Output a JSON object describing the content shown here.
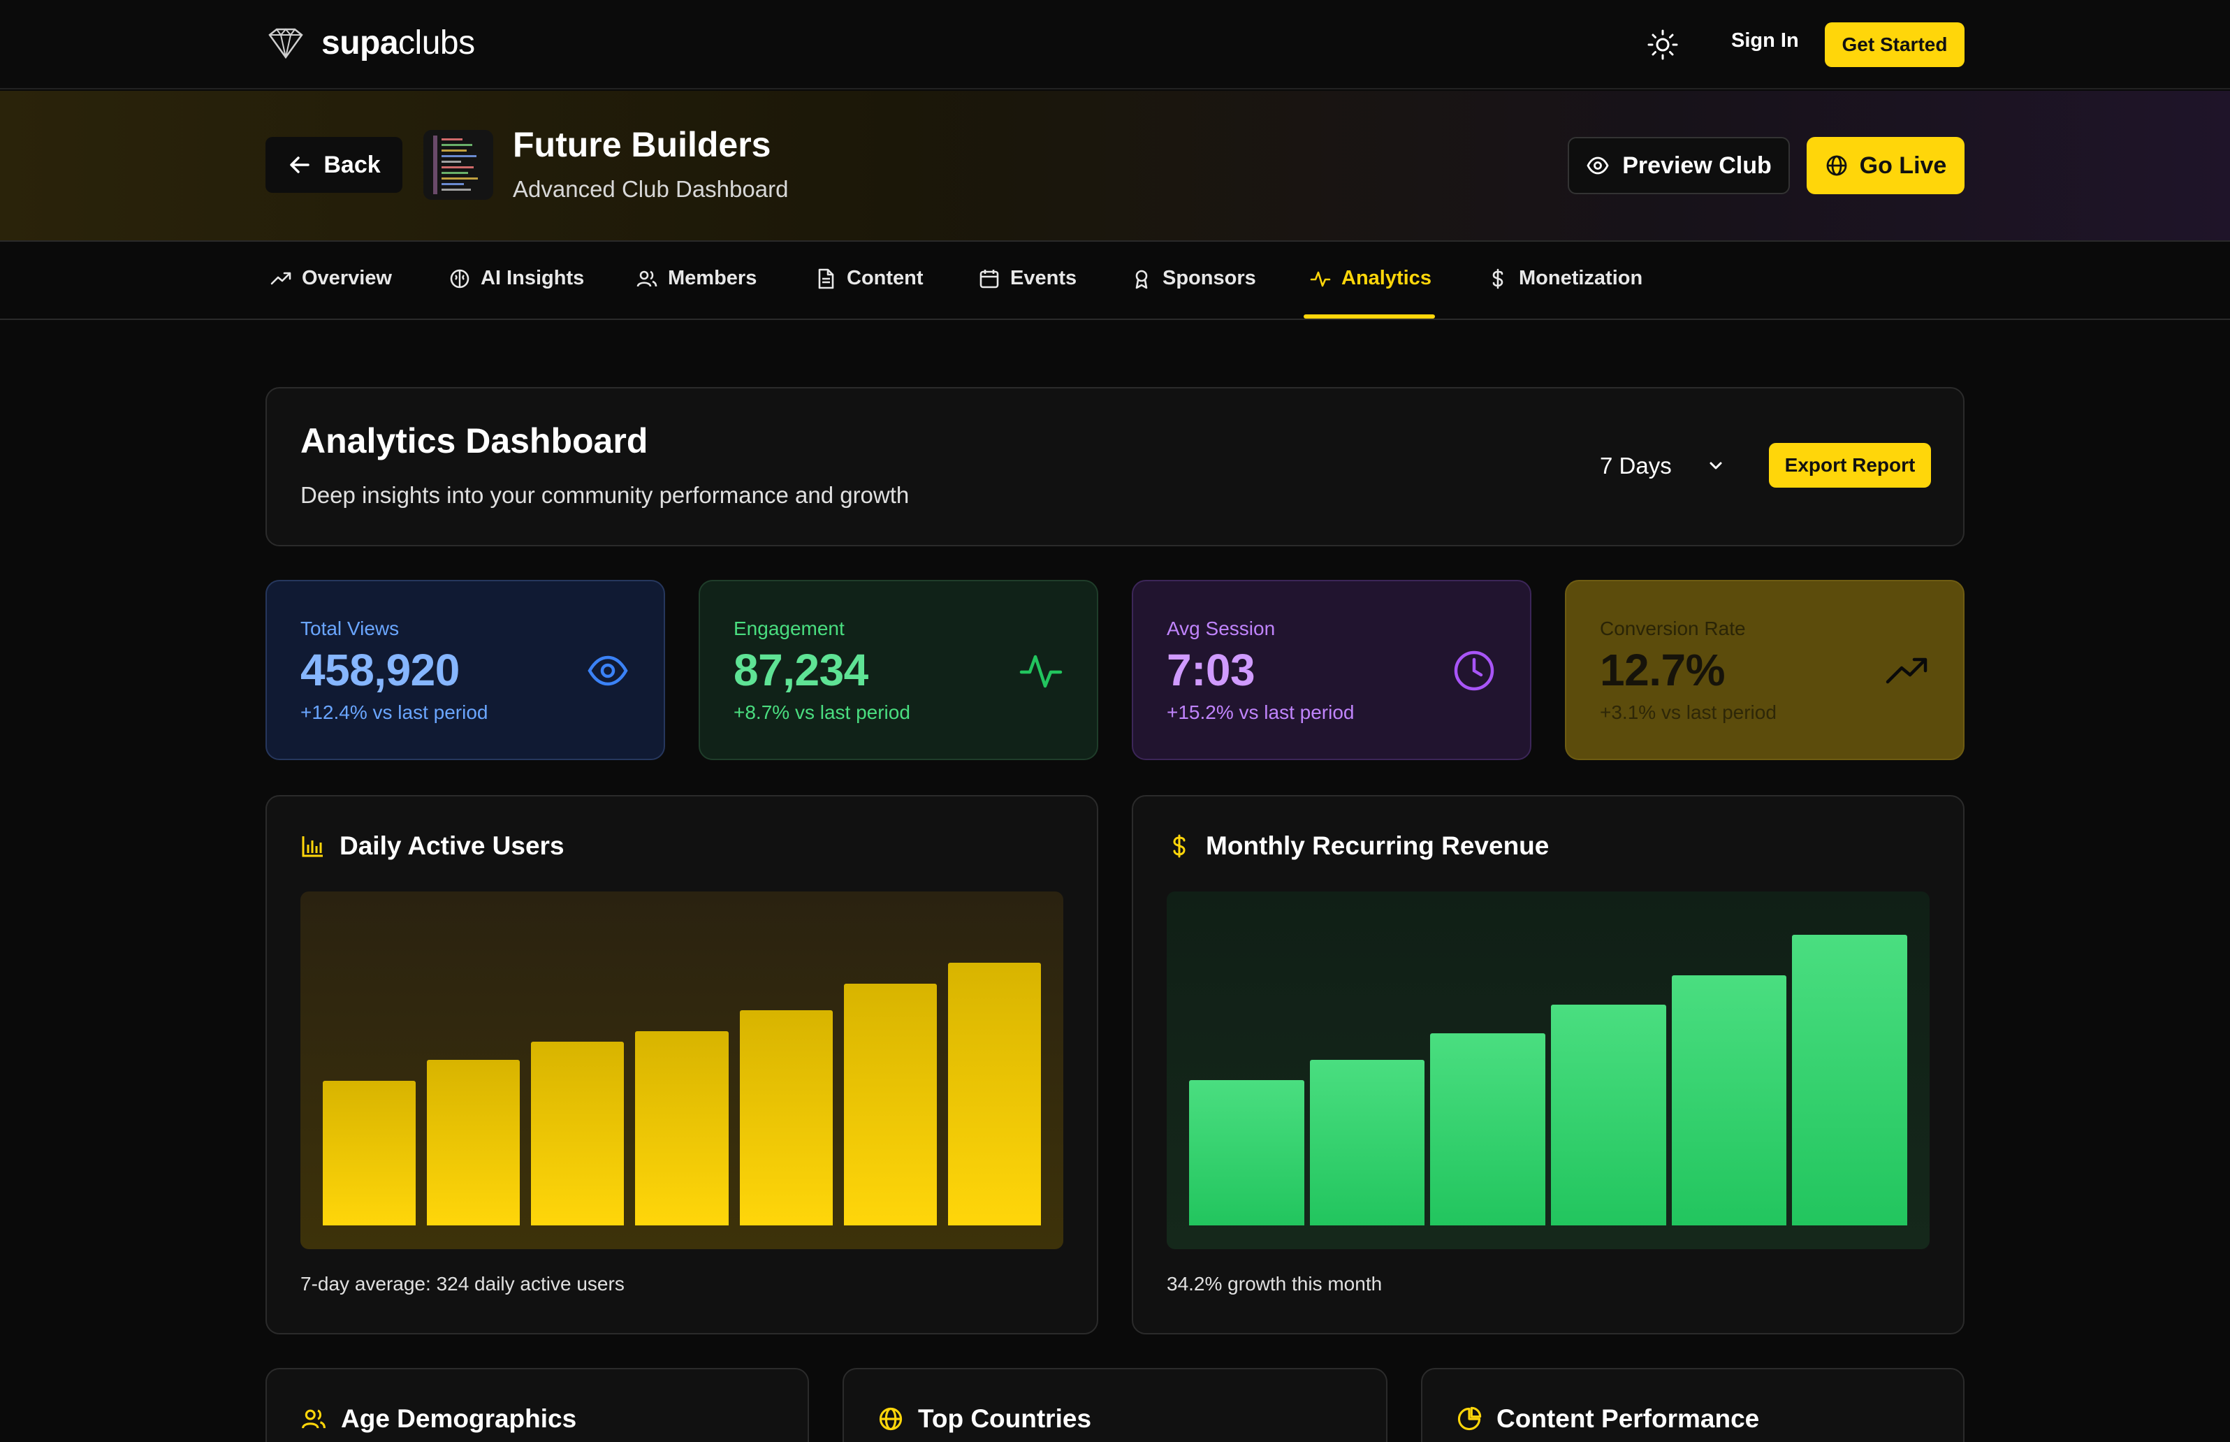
{
  "brand": {
    "prefix": "supa",
    "suffix": "clubs"
  },
  "topnav": {
    "sign_in": "Sign In",
    "get_started": "Get Started"
  },
  "club": {
    "back": "Back",
    "title": "Future Builders",
    "subtitle": "Advanced Club Dashboard",
    "preview": "Preview Club",
    "go_live": "Go Live"
  },
  "tabs": [
    {
      "label": "Overview",
      "icon": "trending-up-icon"
    },
    {
      "label": "AI Insights",
      "icon": "brain-icon"
    },
    {
      "label": "Members",
      "icon": "users-icon"
    },
    {
      "label": "Content",
      "icon": "file-text-icon"
    },
    {
      "label": "Events",
      "icon": "calendar-icon"
    },
    {
      "label": "Sponsors",
      "icon": "award-icon"
    },
    {
      "label": "Analytics",
      "icon": "activity-icon",
      "active": true
    },
    {
      "label": "Monetization",
      "icon": "dollar-icon"
    }
  ],
  "dashboard": {
    "title": "Analytics Dashboard",
    "subtitle": "Deep insights into your community performance and growth",
    "range": "7 Days",
    "export": "Export Report"
  },
  "stats": [
    {
      "label": "Total Views",
      "value": "458,920",
      "change": "+12.4% vs last period",
      "icon": "eye-icon",
      "accent": "#5aa0ff"
    },
    {
      "label": "Engagement",
      "value": "87,234",
      "change": "+8.7% vs last period",
      "icon": "activity-icon",
      "accent": "#34d17a"
    },
    {
      "label": "Avg Session",
      "value": "7:03",
      "change": "+15.2% vs last period",
      "icon": "clock-icon",
      "accent": "#c17bff"
    },
    {
      "label": "Conversion Rate",
      "value": "12.7%",
      "change": "+3.1% vs last period",
      "icon": "trending-up-icon",
      "accent": "#0a0a0a"
    }
  ],
  "charts": {
    "dau": {
      "title": "Daily Active Users",
      "note": "7-day average: 324 daily active users"
    },
    "mrr": {
      "title": "Monthly Recurring Revenue",
      "note": "34.2% growth this month"
    }
  },
  "chart_data": [
    {
      "type": "bar",
      "title": "Daily Active Users",
      "values": [
        0.55,
        0.63,
        0.7,
        0.74,
        0.82,
        0.92,
        1.0
      ],
      "ylim": [
        0,
        1
      ]
    },
    {
      "type": "bar",
      "title": "Monthly Recurring Revenue",
      "values": [
        0.5,
        0.57,
        0.66,
        0.76,
        0.86,
        1.0
      ],
      "ylim": [
        0,
        1
      ]
    }
  ],
  "bottom_panels": {
    "age": "Age Demographics",
    "countries": "Top Countries",
    "content": "Content Performance"
  }
}
